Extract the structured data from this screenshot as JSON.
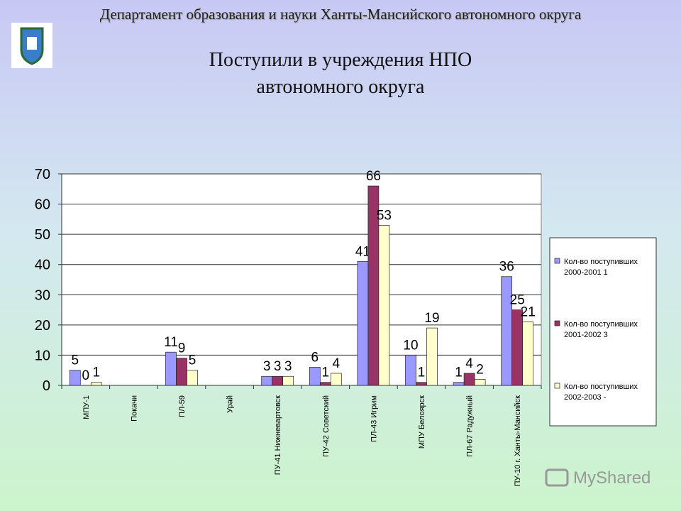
{
  "header": "Департамент образования и науки Ханты-Мансийского автономного округа",
  "watermark": "MyShared",
  "chart_data": {
    "type": "bar",
    "title": "Поступили в учреждения НПО автономного округа",
    "categories": [
      "МПУ-1",
      "Покачи",
      "ПЛ-59",
      "Урай",
      "ПУ-41 Нижневартовск",
      "ПУ-42 Советский",
      "ПЛ-43 Игрим",
      "МПУ Белоярск",
      "ПЛ-67 Радужный",
      "ПУ-10 г. Ханты-Мансийск"
    ],
    "series": [
      {
        "name": "Кол-во поступивших 2000-2001 1",
        "color": "#9999ff",
        "values": [
          5,
          null,
          11,
          null,
          3,
          6,
          41,
          10,
          1,
          36
        ]
      },
      {
        "name": "Кол-во поступивших 2001-2002 3",
        "color": "#993366",
        "values": [
          0,
          null,
          9,
          null,
          3,
          1,
          66,
          1,
          4,
          25
        ]
      },
      {
        "name": "Кол-во поступивших 2002-2003 -",
        "color": "#ffffcc",
        "values": [
          1,
          null,
          5,
          null,
          3,
          4,
          53,
          19,
          2,
          21
        ]
      }
    ],
    "ylim": [
      0,
      70
    ],
    "yticks": [
      0,
      10,
      20,
      30,
      40,
      50,
      60,
      70
    ],
    "grid": true,
    "legend": "right"
  }
}
